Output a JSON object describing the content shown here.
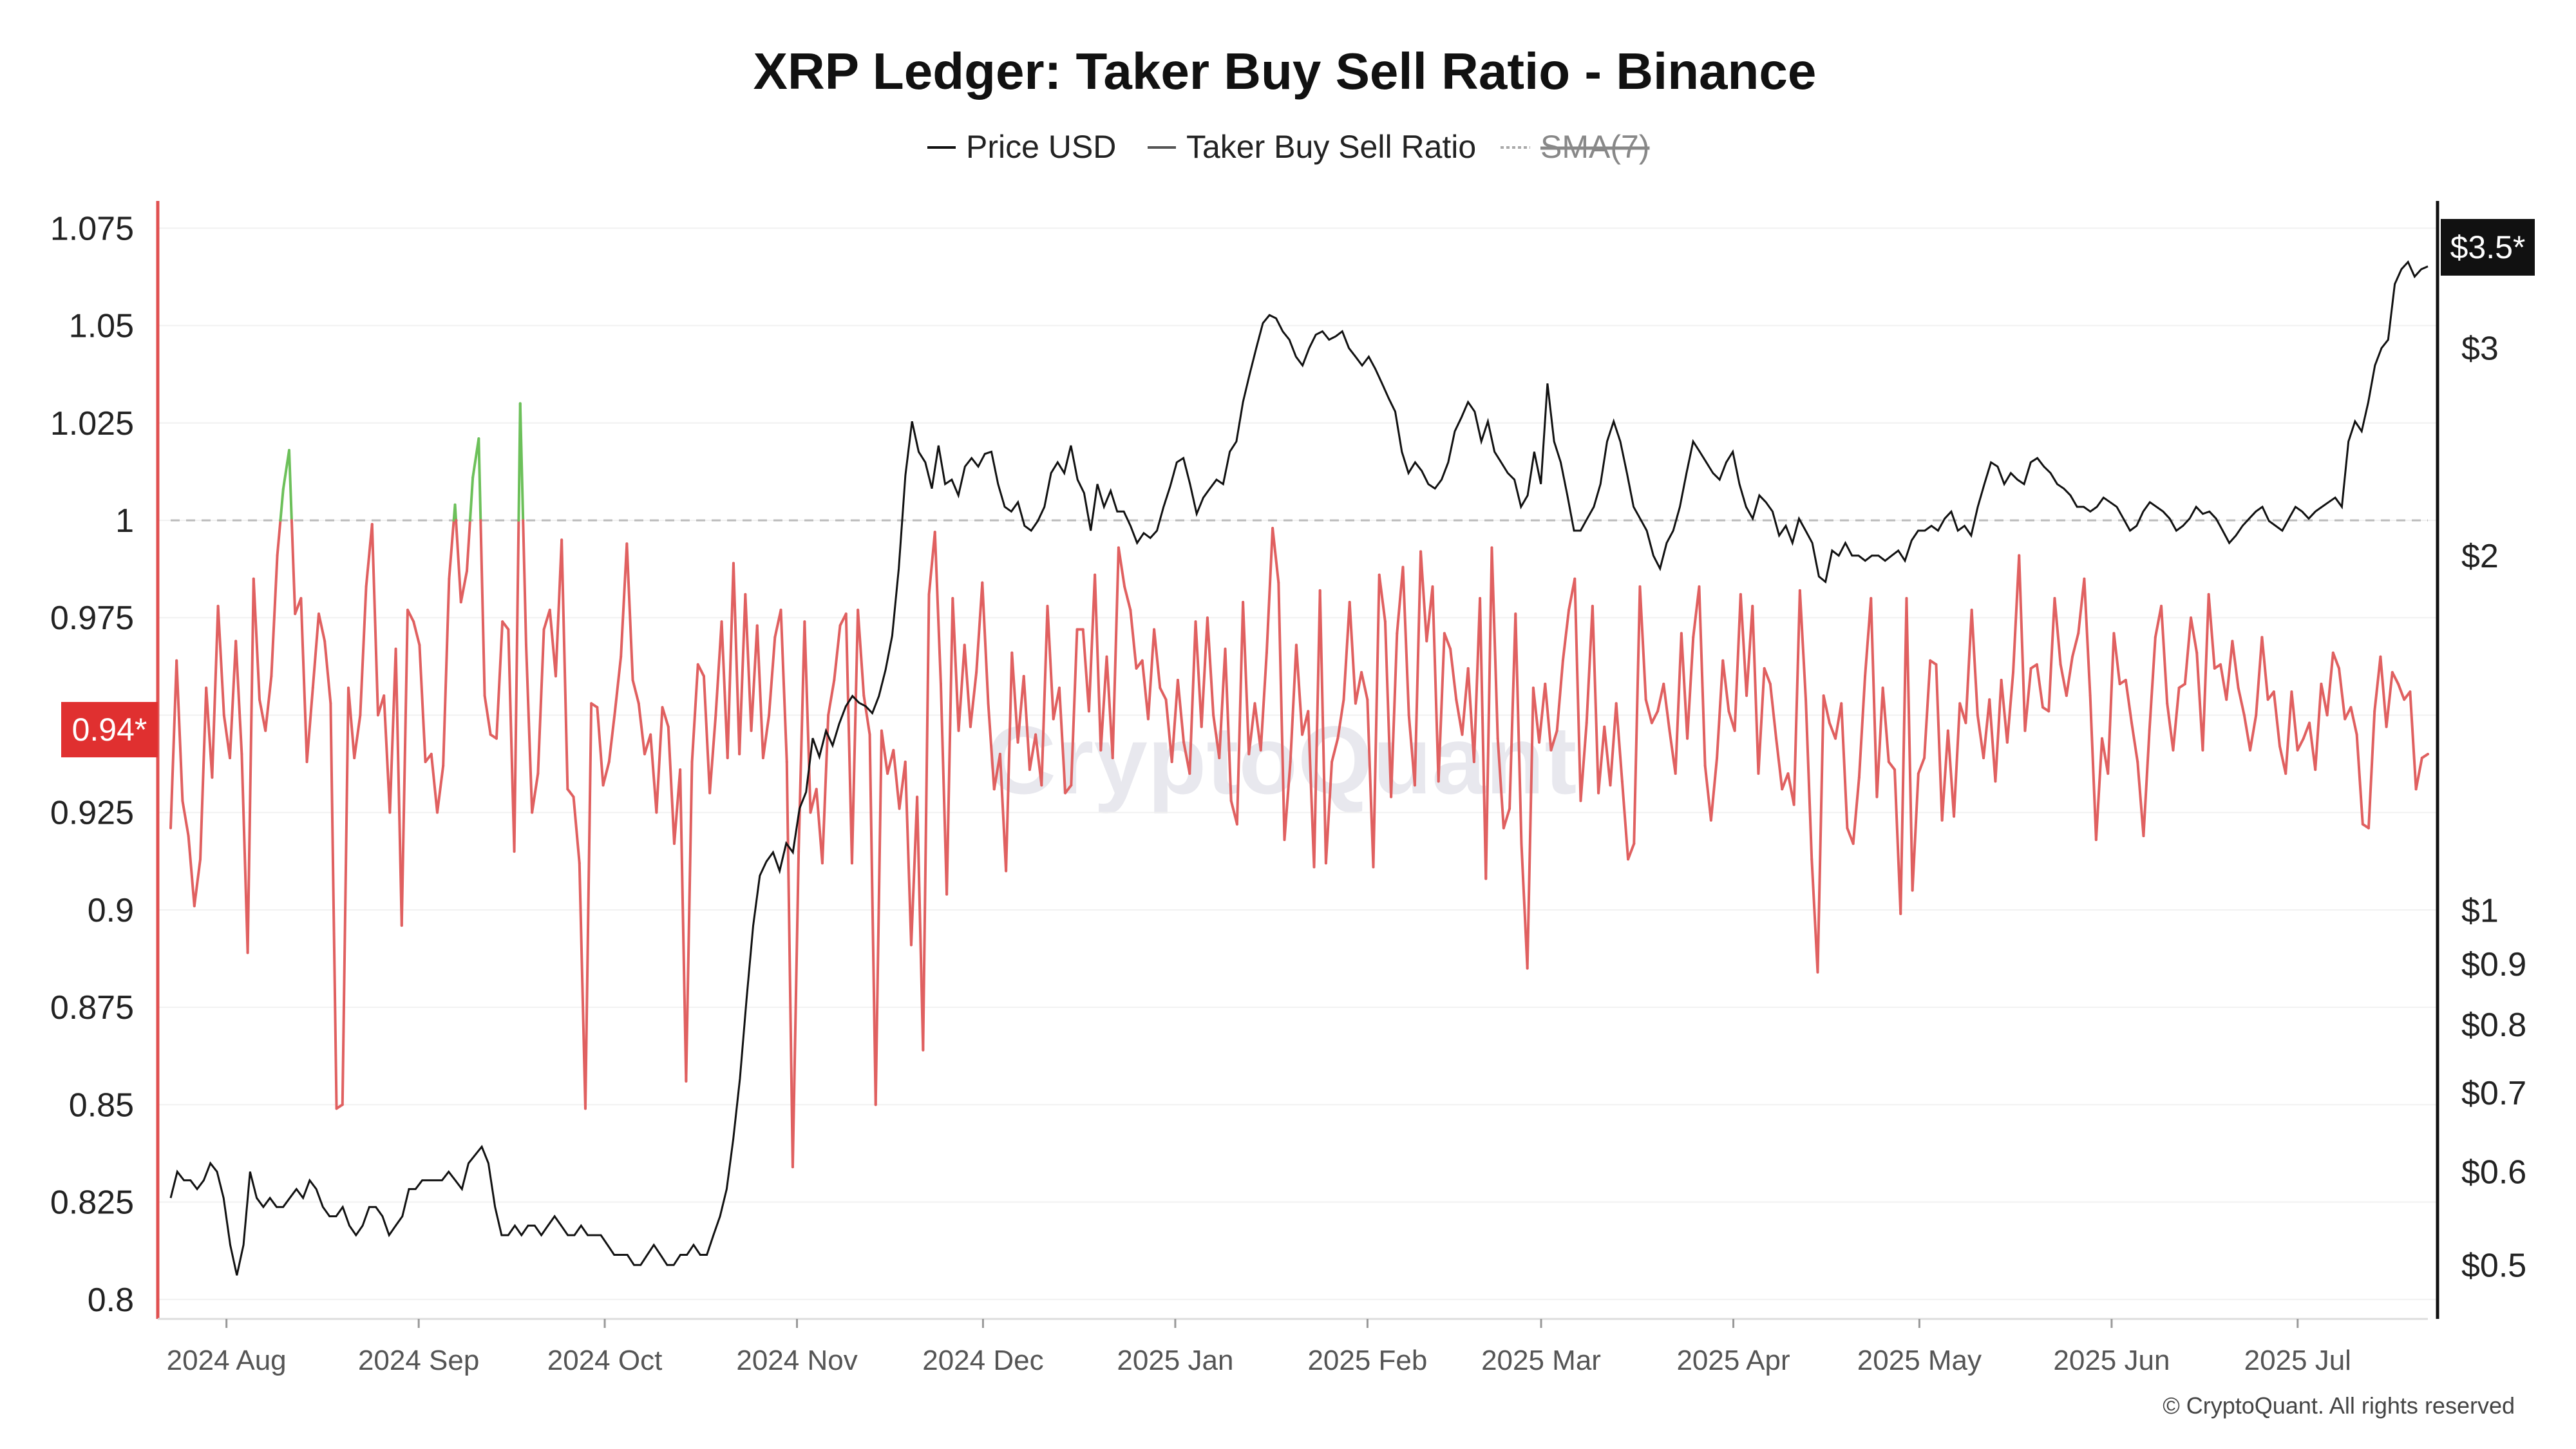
{
  "chart_data": {
    "type": "line",
    "title": "XRP Ledger: Taker Buy Sell Ratio - Binance",
    "legend": [
      {
        "name": "Price USD",
        "enabled": true
      },
      {
        "name": "Taker Buy Sell Ratio",
        "enabled": true
      },
      {
        "name": "SMA(7)",
        "enabled": false
      }
    ],
    "legend_position": "top-center",
    "x_ticks": [
      "2024 Aug",
      "2024 Sep",
      "2024 Oct",
      "2024 Nov",
      "2024 Dec",
      "2025 Jan",
      "2025 Feb",
      "2025 Mar",
      "2025 Apr",
      "2025 May",
      "2025 Jun",
      "2025 Jul"
    ],
    "x_range": [
      "2024-07-23",
      "2025-07-22"
    ],
    "y_left": {
      "ticks": [
        "1.075",
        "1.05",
        "1.025",
        "1",
        "0.975",
        "0.95",
        "0.925",
        "0.9",
        "0.875",
        "0.85",
        "0.825",
        "0.8"
      ],
      "range": [
        0.795,
        1.082
      ],
      "baseline": 1
    },
    "y_right": {
      "scale": "log",
      "ticks": [
        "$3.5*",
        "$3",
        "$2",
        "$1",
        "$0.9",
        "$0.8",
        "$0.7",
        "$0.6",
        "$0.5"
      ],
      "range": [
        0.45,
        4.0
      ]
    },
    "current_ratio_label": "0.94*",
    "current_price_label": "$3.5*",
    "colors": {
      "above_one": "#6cc05a",
      "below_one": "#e06060",
      "price": "#111111",
      "ratio_badge": "#e03030",
      "price_badge": "#111111",
      "left_axis": "#e05050"
    },
    "series": [
      {
        "name": "Taker Buy Sell Ratio",
        "values": [
          0.921,
          0.964,
          0.928,
          0.919,
          0.901,
          0.913,
          0.957,
          0.934,
          0.978,
          0.95,
          0.939,
          0.969,
          0.94,
          0.889,
          0.985,
          0.954,
          0.946,
          0.96,
          0.991,
          1.008,
          1.018,
          0.976,
          0.98,
          0.938,
          0.957,
          0.976,
          0.969,
          0.953,
          0.849,
          0.85,
          0.957,
          0.939,
          0.95,
          0.983,
          0.999,
          0.95,
          0.955,
          0.925,
          0.967,
          0.896,
          0.977,
          0.974,
          0.968,
          0.938,
          0.94,
          0.925,
          0.937,
          0.985,
          1.004,
          0.979,
          0.987,
          1.011,
          1.021,
          0.955,
          0.945,
          0.944,
          0.974,
          0.972,
          0.915,
          1.03,
          0.968,
          0.925,
          0.935,
          0.972,
          0.977,
          0.96,
          0.995,
          0.931,
          0.929,
          0.912,
          0.849,
          0.953,
          0.952,
          0.932,
          0.938,
          0.951,
          0.965,
          0.994,
          0.959,
          0.953,
          0.94,
          0.945,
          0.925,
          0.952,
          0.947,
          0.917,
          0.936,
          0.856,
          0.938,
          0.963,
          0.96,
          0.93,
          0.95,
          0.974,
          0.939,
          0.989,
          0.94,
          0.981,
          0.946,
          0.973,
          0.939,
          0.95,
          0.97,
          0.977,
          0.938,
          0.834,
          0.915,
          0.974,
          0.925,
          0.931,
          0.912,
          0.95,
          0.959,
          0.973,
          0.976,
          0.912,
          0.977,
          0.955,
          0.945,
          0.85,
          0.946,
          0.935,
          0.941,
          0.926,
          0.938,
          0.891,
          0.929,
          0.864,
          0.981,
          0.997,
          0.958,
          0.904,
          0.98,
          0.946,
          0.968,
          0.947,
          0.961,
          0.984,
          0.953,
          0.931,
          0.94,
          0.91,
          0.966,
          0.943,
          0.96,
          0.936,
          0.945,
          0.932,
          0.978,
          0.949,
          0.957,
          0.93,
          0.932,
          0.972,
          0.972,
          0.951,
          0.986,
          0.941,
          0.965,
          0.939,
          0.993,
          0.983,
          0.977,
          0.962,
          0.964,
          0.949,
          0.972,
          0.957,
          0.954,
          0.938,
          0.959,
          0.943,
          0.935,
          0.974,
          0.947,
          0.975,
          0.95,
          0.939,
          0.967,
          0.928,
          0.922,
          0.979,
          0.94,
          0.953,
          0.941,
          0.966,
          0.998,
          0.984,
          0.918,
          0.938,
          0.968,
          0.945,
          0.951,
          0.911,
          0.982,
          0.912,
          0.938,
          0.944,
          0.954,
          0.979,
          0.953,
          0.961,
          0.954,
          0.911,
          0.986,
          0.974,
          0.929,
          0.971,
          0.988,
          0.95,
          0.932,
          0.992,
          0.969,
          0.983,
          0.933,
          0.971,
          0.967,
          0.954,
          0.945,
          0.962,
          0.938,
          0.98,
          0.908,
          0.993,
          0.944,
          0.921,
          0.926,
          0.976,
          0.917,
          0.885,
          0.957,
          0.943,
          0.958,
          0.941,
          0.946,
          0.964,
          0.977,
          0.985,
          0.928,
          0.948,
          0.978,
          0.93,
          0.947,
          0.932,
          0.953,
          0.933,
          0.913,
          0.917,
          0.983,
          0.954,
          0.948,
          0.951,
          0.958,
          0.946,
          0.935,
          0.971,
          0.944,
          0.97,
          0.983,
          0.937,
          0.923,
          0.939,
          0.964,
          0.951,
          0.946,
          0.981,
          0.955,
          0.978,
          0.935,
          0.962,
          0.958,
          0.944,
          0.931,
          0.935,
          0.927,
          0.982,
          0.954,
          0.913,
          0.884,
          0.955,
          0.948,
          0.944,
          0.953,
          0.921,
          0.917,
          0.934,
          0.96,
          0.98,
          0.929,
          0.957,
          0.938,
          0.936,
          0.899,
          0.98,
          0.905,
          0.935,
          0.939,
          0.964,
          0.963,
          0.923,
          0.946,
          0.924,
          0.953,
          0.948,
          0.977,
          0.95,
          0.939,
          0.954,
          0.933,
          0.959,
          0.943,
          0.961,
          0.991,
          0.946,
          0.962,
          0.963,
          0.952,
          0.951,
          0.98,
          0.963,
          0.955,
          0.965,
          0.971,
          0.985,
          0.955,
          0.918,
          0.944,
          0.935,
          0.971,
          0.958,
          0.959,
          0.948,
          0.938,
          0.919,
          0.946,
          0.97,
          0.978,
          0.953,
          0.941,
          0.957,
          0.958,
          0.975,
          0.966,
          0.941,
          0.981,
          0.962,
          0.963,
          0.954,
          0.969,
          0.957,
          0.95,
          0.941,
          0.95,
          0.97,
          0.954,
          0.956,
          0.942,
          0.935,
          0.956,
          0.941,
          0.944,
          0.948,
          0.936,
          0.958,
          0.95,
          0.966,
          0.962,
          0.949,
          0.952,
          0.945,
          0.922,
          0.921,
          0.951,
          0.965,
          0.947,
          0.961,
          0.958,
          0.954,
          0.956,
          0.931,
          0.939,
          0.94
        ]
      },
      {
        "name": "Price USD",
        "values": [
          0.57,
          0.6,
          0.59,
          0.59,
          0.58,
          0.59,
          0.61,
          0.6,
          0.57,
          0.52,
          0.49,
          0.52,
          0.6,
          0.57,
          0.56,
          0.57,
          0.56,
          0.56,
          0.57,
          0.58,
          0.57,
          0.59,
          0.58,
          0.56,
          0.55,
          0.55,
          0.56,
          0.54,
          0.53,
          0.54,
          0.56,
          0.56,
          0.55,
          0.53,
          0.54,
          0.55,
          0.58,
          0.58,
          0.59,
          0.59,
          0.59,
          0.59,
          0.6,
          0.59,
          0.58,
          0.61,
          0.62,
          0.63,
          0.61,
          0.56,
          0.53,
          0.53,
          0.54,
          0.53,
          0.54,
          0.54,
          0.53,
          0.54,
          0.55,
          0.54,
          0.53,
          0.53,
          0.54,
          0.53,
          0.53,
          0.53,
          0.52,
          0.51,
          0.51,
          0.51,
          0.5,
          0.5,
          0.51,
          0.52,
          0.51,
          0.5,
          0.5,
          0.51,
          0.51,
          0.52,
          0.51,
          0.51,
          0.53,
          0.55,
          0.58,
          0.64,
          0.72,
          0.84,
          0.97,
          1.07,
          1.1,
          1.12,
          1.08,
          1.14,
          1.12,
          1.22,
          1.26,
          1.4,
          1.35,
          1.42,
          1.38,
          1.44,
          1.49,
          1.52,
          1.5,
          1.49,
          1.47,
          1.52,
          1.6,
          1.71,
          1.95,
          2.34,
          2.6,
          2.45,
          2.4,
          2.28,
          2.48,
          2.3,
          2.32,
          2.25,
          2.38,
          2.42,
          2.38,
          2.44,
          2.45,
          2.3,
          2.2,
          2.18,
          2.22,
          2.12,
          2.1,
          2.14,
          2.2,
          2.35,
          2.4,
          2.35,
          2.48,
          2.32,
          2.26,
          2.1,
          2.3,
          2.2,
          2.27,
          2.18,
          2.18,
          2.12,
          2.05,
          2.09,
          2.07,
          2.1,
          2.2,
          2.29,
          2.4,
          2.42,
          2.3,
          2.17,
          2.24,
          2.28,
          2.32,
          2.3,
          2.45,
          2.5,
          2.7,
          2.85,
          3.0,
          3.15,
          3.2,
          3.18,
          3.1,
          3.05,
          2.95,
          2.9,
          3.0,
          3.08,
          3.1,
          3.05,
          3.07,
          3.1,
          3.0,
          2.95,
          2.9,
          2.95,
          2.88,
          2.8,
          2.72,
          2.65,
          2.45,
          2.35,
          2.4,
          2.36,
          2.3,
          2.28,
          2.32,
          2.4,
          2.55,
          2.62,
          2.7,
          2.65,
          2.5,
          2.6,
          2.45,
          2.4,
          2.35,
          2.32,
          2.2,
          2.25,
          2.45,
          2.3,
          2.8,
          2.5,
          2.4,
          2.25,
          2.1,
          2.1,
          2.15,
          2.2,
          2.3,
          2.5,
          2.6,
          2.5,
          2.35,
          2.2,
          2.15,
          2.1,
          2.0,
          1.95,
          2.05,
          2.1,
          2.2,
          2.35,
          2.5,
          2.45,
          2.4,
          2.35,
          2.32,
          2.4,
          2.45,
          2.3,
          2.2,
          2.15,
          2.25,
          2.22,
          2.18,
          2.08,
          2.12,
          2.05,
          2.15,
          2.1,
          2.05,
          1.92,
          1.9,
          2.02,
          2.0,
          2.05,
          2.0,
          2.0,
          1.98,
          2.0,
          2.0,
          1.98,
          2.0,
          2.02,
          1.98,
          2.06,
          2.1,
          2.1,
          2.12,
          2.1,
          2.15,
          2.18,
          2.1,
          2.12,
          2.08,
          2.2,
          2.3,
          2.4,
          2.38,
          2.3,
          2.35,
          2.32,
          2.3,
          2.4,
          2.42,
          2.38,
          2.35,
          2.3,
          2.28,
          2.25,
          2.2,
          2.2,
          2.18,
          2.2,
          2.24,
          2.22,
          2.2,
          2.15,
          2.1,
          2.12,
          2.18,
          2.22,
          2.2,
          2.18,
          2.15,
          2.1,
          2.12,
          2.15,
          2.2,
          2.17,
          2.18,
          2.15,
          2.1,
          2.05,
          2.08,
          2.12,
          2.15,
          2.18,
          2.2,
          2.14,
          2.12,
          2.1,
          2.15,
          2.2,
          2.18,
          2.15,
          2.18,
          2.2,
          2.22,
          2.24,
          2.2,
          2.5,
          2.6,
          2.55,
          2.7,
          2.9,
          3.0,
          3.05,
          3.4,
          3.5,
          3.55,
          3.45,
          3.5,
          3.52
        ]
      }
    ]
  },
  "watermark": "CryptoQuant",
  "copyright": "© CryptoQuant. All rights reserved"
}
